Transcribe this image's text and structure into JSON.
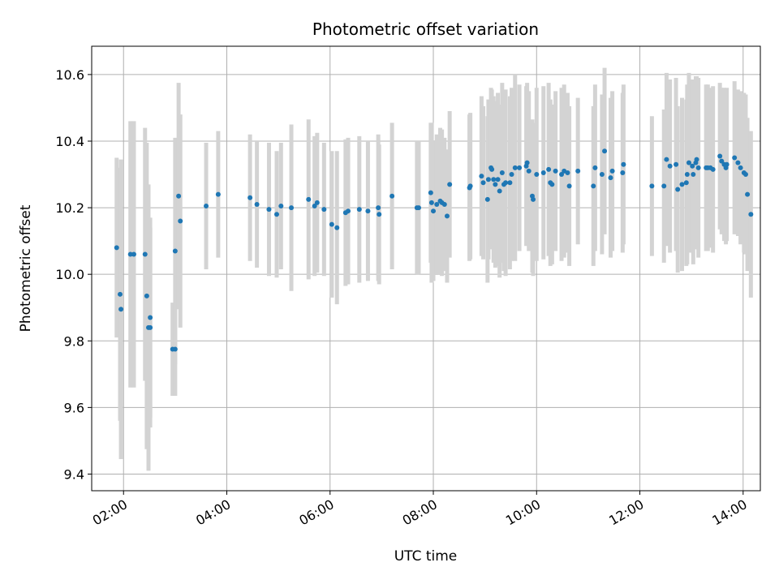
{
  "chart_data": {
    "type": "scatter",
    "title": "Photometric offset variation",
    "xlabel": "UTC time",
    "ylabel": "Photometric offset",
    "x_ticks": [
      "02:00",
      "04:00",
      "06:00",
      "08:00",
      "10:00",
      "12:00",
      "14:00"
    ],
    "y_ticks": [
      "9.4",
      "9.6",
      "9.8",
      "10.0",
      "10.2",
      "10.4",
      "10.6"
    ],
    "xlim": [
      "01:23",
      "14:20"
    ],
    "ylim": [
      9.35,
      10.685
    ],
    "grid": true,
    "colors": {
      "point": "#1f77b4",
      "errorbar": "#d3d3d3",
      "grid": "#b0b0b0"
    },
    "series": [
      {
        "points": [
          [
            "01:52",
            10.08,
            0.27
          ],
          [
            "01:56",
            9.94,
            0.38
          ],
          [
            "01:57",
            9.895,
            0.45
          ],
          [
            "02:08",
            10.06,
            0.4
          ],
          [
            "02:12",
            10.06,
            0.4
          ],
          [
            "02:25",
            10.06,
            0.38
          ],
          [
            "02:27",
            9.935,
            0.46
          ],
          [
            "02:29",
            9.84,
            0.43
          ],
          [
            "02:31",
            9.84,
            0.3
          ],
          [
            "02:31",
            9.87,
            0.3
          ],
          [
            "02:57",
            9.775,
            0.14
          ],
          [
            "03:00",
            9.775,
            0.14
          ],
          [
            "03:00",
            10.07,
            0.34
          ],
          [
            "03:04",
            10.235,
            0.34
          ],
          [
            "03:06",
            10.16,
            0.32
          ],
          [
            "03:36",
            10.205,
            0.19
          ],
          [
            "03:50",
            10.24,
            0.19
          ],
          [
            "04:27",
            10.23,
            0.19
          ],
          [
            "04:35",
            10.21,
            0.19
          ],
          [
            "04:49",
            10.195,
            0.2
          ],
          [
            "04:58",
            10.18,
            0.19
          ],
          [
            "05:03",
            10.205,
            0.19
          ],
          [
            "05:15",
            10.2,
            0.25
          ],
          [
            "05:35",
            10.225,
            0.24
          ],
          [
            "05:42",
            10.205,
            0.21
          ],
          [
            "05:45",
            10.215,
            0.21
          ],
          [
            "05:53",
            10.195,
            0.2
          ],
          [
            "06:02",
            10.15,
            0.22
          ],
          [
            "06:08",
            10.14,
            0.23
          ],
          [
            "06:18",
            10.185,
            0.22
          ],
          [
            "06:21",
            10.19,
            0.22
          ],
          [
            "06:34",
            10.195,
            0.22
          ],
          [
            "06:44",
            10.19,
            0.21
          ],
          [
            "06:56",
            10.2,
            0.22
          ],
          [
            "06:57",
            10.18,
            0.21
          ],
          [
            "07:12",
            10.235,
            0.22
          ],
          [
            "07:41",
            10.2,
            0.2
          ],
          [
            "07:43",
            10.2,
            0.2
          ],
          [
            "07:57",
            10.245,
            0.21
          ],
          [
            "07:58",
            10.215,
            0.24
          ],
          [
            "08:00",
            10.19,
            0.21
          ],
          [
            "08:04",
            10.21,
            0.21
          ],
          [
            "08:08",
            10.22,
            0.22
          ],
          [
            "08:10",
            10.215,
            0.22
          ],
          [
            "08:13",
            10.21,
            0.2
          ],
          [
            "08:16",
            10.175,
            0.2
          ],
          [
            "08:19",
            10.27,
            0.22
          ],
          [
            "08:42",
            10.26,
            0.22
          ],
          [
            "08:43",
            10.265,
            0.22
          ],
          [
            "08:56",
            10.295,
            0.24
          ],
          [
            "08:58",
            10.275,
            0.23
          ],
          [
            "09:03",
            10.225,
            0.25
          ],
          [
            "09:04",
            10.285,
            0.24
          ],
          [
            "09:07",
            10.32,
            0.24
          ],
          [
            "09:08",
            10.315,
            0.24
          ],
          [
            "09:10",
            10.285,
            0.25
          ],
          [
            "09:12",
            10.27,
            0.25
          ],
          [
            "09:15",
            10.285,
            0.26
          ],
          [
            "09:17",
            10.25,
            0.26
          ],
          [
            "09:20",
            10.305,
            0.27
          ],
          [
            "09:22",
            10.27,
            0.26
          ],
          [
            "09:24",
            10.275,
            0.28
          ],
          [
            "09:29",
            10.275,
            0.26
          ],
          [
            "09:31",
            10.3,
            0.26
          ],
          [
            "09:35",
            10.32,
            0.28
          ],
          [
            "09:40",
            10.32,
            0.25
          ],
          [
            "09:48",
            10.325,
            0.24
          ],
          [
            "09:49",
            10.335,
            0.24
          ],
          [
            "09:51",
            10.31,
            0.24
          ],
          [
            "09:55",
            10.235,
            0.23
          ],
          [
            "09:56",
            10.225,
            0.23
          ],
          [
            "10:00",
            10.3,
            0.26
          ],
          [
            "10:08",
            10.305,
            0.26
          ],
          [
            "10:14",
            10.315,
            0.26
          ],
          [
            "10:16",
            10.275,
            0.25
          ],
          [
            "10:18",
            10.27,
            0.24
          ],
          [
            "10:22",
            10.31,
            0.24
          ],
          [
            "10:29",
            10.3,
            0.26
          ],
          [
            "10:32",
            10.31,
            0.26
          ],
          [
            "10:36",
            10.305,
            0.24
          ],
          [
            "10:38",
            10.265,
            0.24
          ],
          [
            "10:48",
            10.31,
            0.22
          ],
          [
            "11:06",
            10.265,
            0.24
          ],
          [
            "11:08",
            10.32,
            0.25
          ],
          [
            "11:16",
            10.3,
            0.24
          ],
          [
            "11:19",
            10.37,
            0.25
          ],
          [
            "11:26",
            10.29,
            0.24
          ],
          [
            "11:28",
            10.31,
            0.24
          ],
          [
            "11:40",
            10.305,
            0.24
          ],
          [
            "11:41",
            10.33,
            0.24
          ],
          [
            "12:14",
            10.265,
            0.21
          ],
          [
            "12:28",
            10.265,
            0.23
          ],
          [
            "12:31",
            10.345,
            0.26
          ],
          [
            "12:35",
            10.325,
            0.26
          ],
          [
            "12:42",
            10.33,
            0.26
          ],
          [
            "12:44",
            10.255,
            0.25
          ],
          [
            "12:49",
            10.27,
            0.26
          ],
          [
            "12:54",
            10.275,
            0.25
          ],
          [
            "12:55",
            10.3,
            0.27
          ],
          [
            "12:57",
            10.335,
            0.27
          ],
          [
            "13:01",
            10.325,
            0.26
          ],
          [
            "13:02",
            10.3,
            0.27
          ],
          [
            "13:05",
            10.335,
            0.26
          ],
          [
            "13:06",
            10.345,
            0.25
          ],
          [
            "13:08",
            10.32,
            0.27
          ],
          [
            "13:17",
            10.32,
            0.25
          ],
          [
            "13:19",
            10.32,
            0.25
          ],
          [
            "13:22",
            10.32,
            0.24
          ],
          [
            "13:25",
            10.315,
            0.25
          ],
          [
            "13:33",
            10.355,
            0.22
          ],
          [
            "13:35",
            10.34,
            0.22
          ],
          [
            "13:38",
            10.33,
            0.23
          ],
          [
            "13:40",
            10.32,
            0.23
          ],
          [
            "13:41",
            10.33,
            0.23
          ],
          [
            "13:50",
            10.35,
            0.23
          ],
          [
            "13:54",
            10.335,
            0.22
          ],
          [
            "13:57",
            10.32,
            0.23
          ],
          [
            "14:01",
            10.305,
            0.24
          ],
          [
            "14:03",
            10.3,
            0.24
          ],
          [
            "14:05",
            10.24,
            0.23
          ],
          [
            "14:09",
            10.18,
            0.25
          ]
        ]
      }
    ]
  }
}
